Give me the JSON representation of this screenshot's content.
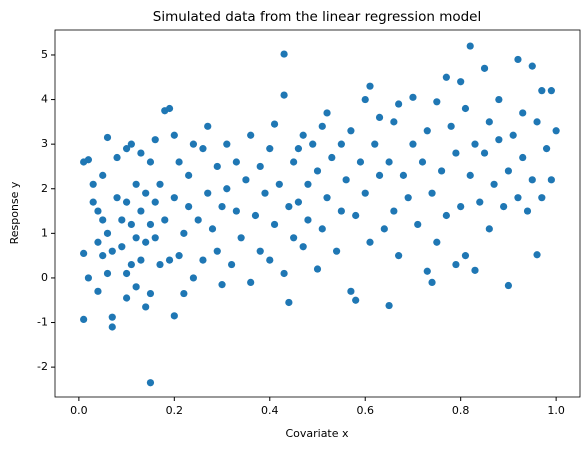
{
  "chart_data": {
    "type": "scatter",
    "title": "Simulated data from the linear regression model",
    "xlabel": "Covariate x",
    "ylabel": "Response y",
    "color": "#1f77b4",
    "xlim": [
      -0.05,
      1.05
    ],
    "ylim": [
      -2.67,
      5.56
    ],
    "xticks": [
      {
        "value": 0,
        "label": "0.0"
      },
      0.2,
      0.4,
      0.6,
      0.8,
      {
        "value": 1,
        "label": "1.0"
      }
    ],
    "yticks": [
      -2,
      -1,
      0,
      1,
      2,
      3,
      4,
      5
    ],
    "grid": false,
    "x": [
      0.01,
      0.02,
      0.01,
      0.02,
      0.01,
      0.03,
      0.03,
      0.04,
      0.04,
      0.04,
      0.05,
      0.05,
      0.05,
      0.06,
      0.06,
      0.06,
      0.07,
      0.07,
      0.07,
      0.08,
      0.08,
      0.09,
      0.09,
      0.1,
      0.1,
      0.1,
      0.1,
      0.11,
      0.11,
      0.11,
      0.12,
      0.12,
      0.12,
      0.13,
      0.13,
      0.13,
      0.14,
      0.14,
      0.14,
      0.15,
      0.15,
      0.15,
      0.15,
      0.16,
      0.16,
      0.16,
      0.17,
      0.17,
      0.18,
      0.18,
      0.19,
      0.19,
      0.2,
      0.2,
      0.2,
      0.21,
      0.21,
      0.22,
      0.22,
      0.23,
      0.23,
      0.24,
      0.24,
      0.25,
      0.26,
      0.26,
      0.27,
      0.27,
      0.28,
      0.29,
      0.29,
      0.3,
      0.3,
      0.31,
      0.31,
      0.32,
      0.33,
      0.33,
      0.34,
      0.35,
      0.36,
      0.36,
      0.37,
      0.38,
      0.38,
      0.39,
      0.4,
      0.4,
      0.41,
      0.41,
      0.42,
      0.43,
      0.43,
      0.43,
      0.44,
      0.44,
      0.45,
      0.45,
      0.46,
      0.46,
      0.47,
      0.47,
      0.48,
      0.48,
      0.49,
      0.5,
      0.5,
      0.51,
      0.51,
      0.52,
      0.52,
      0.53,
      0.54,
      0.55,
      0.55,
      0.56,
      0.57,
      0.57,
      0.58,
      0.58,
      0.59,
      0.6,
      0.6,
      0.61,
      0.61,
      0.62,
      0.63,
      0.63,
      0.64,
      0.65,
      0.65,
      0.66,
      0.66,
      0.67,
      0.67,
      0.68,
      0.69,
      0.7,
      0.7,
      0.71,
      0.72,
      0.73,
      0.73,
      0.74,
      0.74,
      0.75,
      0.75,
      0.76,
      0.77,
      0.77,
      0.78,
      0.79,
      0.79,
      0.8,
      0.8,
      0.81,
      0.81,
      0.82,
      0.82,
      0.83,
      0.83,
      0.84,
      0.85,
      0.85,
      0.86,
      0.86,
      0.87,
      0.88,
      0.88,
      0.89,
      0.9,
      0.9,
      0.91,
      0.92,
      0.92,
      0.93,
      0.93,
      0.94,
      0.95,
      0.95,
      0.96,
      0.96,
      0.97,
      0.97,
      0.98,
      0.99,
      0.99,
      1.0
    ],
    "values": [
      2.6,
      2.65,
      0.55,
      0.0,
      -0.93,
      2.1,
      1.7,
      1.5,
      0.8,
      -0.3,
      2.3,
      1.3,
      0.5,
      3.15,
      1.0,
      0.1,
      -0.88,
      -1.1,
      0.6,
      1.8,
      2.7,
      1.3,
      0.7,
      2.9,
      1.7,
      0.1,
      -0.45,
      3.0,
      1.2,
      0.3,
      2.1,
      0.9,
      -0.2,
      2.8,
      1.5,
      0.4,
      1.9,
      0.8,
      -0.65,
      2.6,
      1.2,
      -2.35,
      -0.35,
      3.1,
      1.7,
      0.9,
      2.1,
      0.3,
      3.75,
      1.3,
      3.8,
      0.4,
      -0.85,
      1.8,
      3.2,
      2.6,
      0.5,
      1.0,
      -0.35,
      2.3,
      1.6,
      0.0,
      3.0,
      1.3,
      2.9,
      0.4,
      3.4,
      1.9,
      1.1,
      2.5,
      0.6,
      1.6,
      -0.15,
      3.0,
      2.0,
      0.3,
      2.6,
      1.5,
      0.9,
      2.2,
      3.2,
      -0.1,
      1.4,
      2.5,
      0.6,
      1.9,
      2.9,
      0.4,
      3.45,
      1.2,
      2.1,
      5.02,
      4.1,
      0.1,
      -0.55,
      1.6,
      2.6,
      0.9,
      2.9,
      1.7,
      3.2,
      0.7,
      2.1,
      1.3,
      3.0,
      0.2,
      2.4,
      3.4,
      1.1,
      3.7,
      1.8,
      2.7,
      0.6,
      3.0,
      1.5,
      2.2,
      3.3,
      -0.3,
      1.4,
      -0.5,
      2.6,
      4.0,
      1.9,
      4.3,
      0.8,
      3.0,
      2.3,
      3.6,
      1.1,
      -0.62,
      2.6,
      3.5,
      1.5,
      3.9,
      0.5,
      2.3,
      1.8,
      4.05,
      3.0,
      1.2,
      2.6,
      0.15,
      3.3,
      -0.1,
      1.9,
      3.95,
      0.8,
      2.4,
      4.5,
      1.4,
      3.4,
      0.3,
      2.8,
      4.4,
      1.6,
      3.8,
      0.5,
      5.2,
      2.3,
      0.17,
      3.0,
      1.7,
      4.7,
      2.8,
      3.5,
      1.1,
      2.1,
      4.0,
      3.1,
      1.6,
      -0.17,
      2.4,
      3.2,
      4.9,
      1.8,
      3.7,
      2.7,
      1.5,
      4.75,
      2.2,
      0.52,
      3.5,
      4.2,
      1.8,
      2.9,
      4.2,
      2.2,
      3.3
    ]
  }
}
